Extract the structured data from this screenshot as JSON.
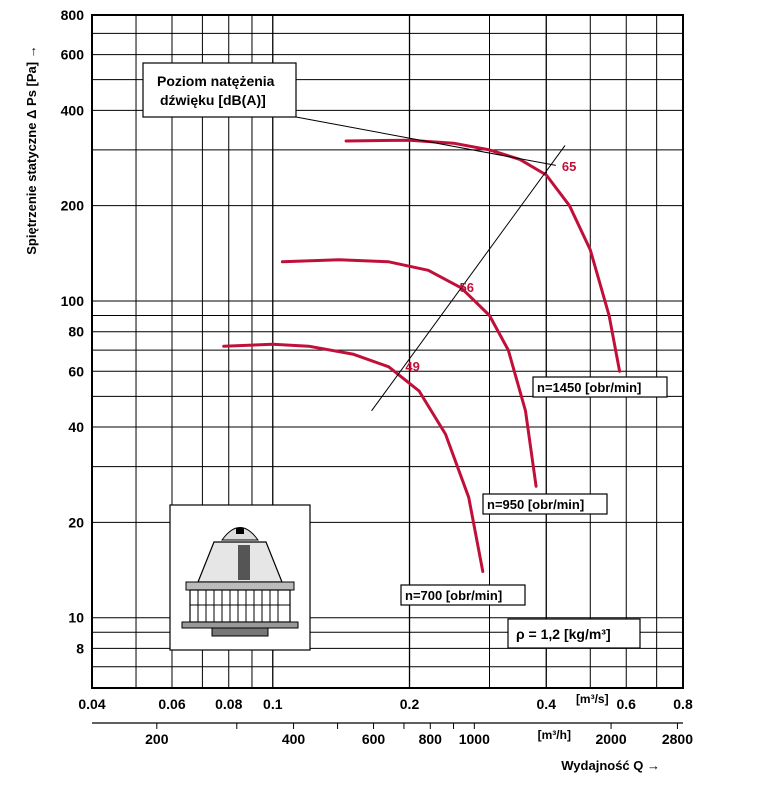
{
  "chart_data": {
    "type": "line",
    "x_scale": "log",
    "y_scale": "log",
    "xlim": [
      0.04,
      0.8
    ],
    "ylim": [
      6,
      800
    ],
    "grid": true,
    "x_ticks_m3s": [
      "0.04",
      "0.06",
      "0.08",
      "0.1",
      "0.2",
      "0.4",
      "0.6",
      "0.8"
    ],
    "x_unit_m3s": "[m³/s]",
    "x_ticks_m3h": [
      "200",
      "400",
      "600",
      "800",
      "1000",
      "2000",
      "2800"
    ],
    "x_unit_m3h": "[m³/h]",
    "xlabel": "Wydajność Q →",
    "y_ticks": [
      "800",
      "600",
      "400",
      "200",
      "100",
      "80",
      "60",
      "40",
      "20",
      "10",
      "8"
    ],
    "ylabel": "Spiętrzenie statyczne Δ Ps [Pa] →",
    "series": [
      {
        "name": "n=1450 [obr/min]",
        "color": "#c0103a",
        "points": [
          [
            0.145,
            320
          ],
          [
            0.2,
            322
          ],
          [
            0.25,
            315
          ],
          [
            0.3,
            300
          ],
          [
            0.35,
            280
          ],
          [
            0.4,
            250
          ],
          [
            0.45,
            200
          ],
          [
            0.5,
            145
          ],
          [
            0.55,
            90
          ],
          [
            0.58,
            60
          ]
        ]
      },
      {
        "name": "n=950 [obr/min]",
        "color": "#c0103a",
        "points": [
          [
            0.105,
            133
          ],
          [
            0.14,
            135
          ],
          [
            0.18,
            133
          ],
          [
            0.22,
            125
          ],
          [
            0.26,
            110
          ],
          [
            0.3,
            90
          ],
          [
            0.33,
            70
          ],
          [
            0.36,
            45
          ],
          [
            0.38,
            26
          ]
        ]
      },
      {
        "name": "n=700 [obr/min]",
        "color": "#c0103a",
        "points": [
          [
            0.078,
            72
          ],
          [
            0.1,
            73
          ],
          [
            0.12,
            72
          ],
          [
            0.15,
            68
          ],
          [
            0.18,
            62
          ],
          [
            0.21,
            52
          ],
          [
            0.24,
            38
          ],
          [
            0.27,
            24
          ],
          [
            0.29,
            14
          ]
        ]
      }
    ],
    "sound_levels": [
      {
        "label": "65",
        "x": 0.42,
        "y": 265
      },
      {
        "label": "56",
        "x": 0.25,
        "y": 110
      },
      {
        "label": "49",
        "x": 0.19,
        "y": 62
      }
    ],
    "annotations": {
      "sound_box_line1": "Poziom natężenia",
      "sound_box_line2": "dźwięku [dB(A)]",
      "density": "ρ = 1,2 [kg/m³]"
    }
  }
}
